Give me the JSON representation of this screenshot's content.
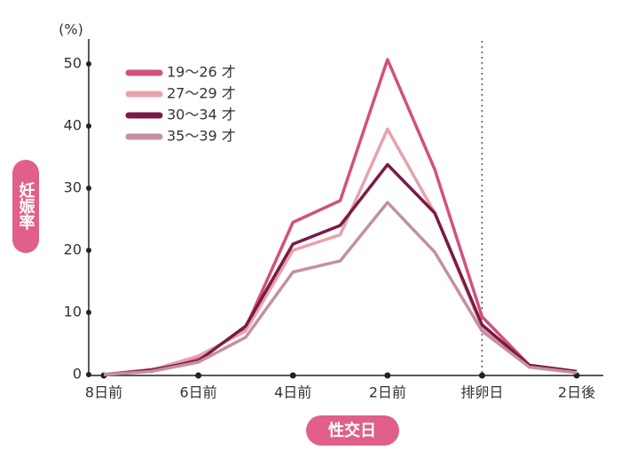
{
  "chart_data": {
    "type": "line",
    "y_unit": "(%)",
    "y_label": "妊娠率",
    "x_label": "性交日",
    "categories": [
      "8日前",
      null,
      "6日前",
      null,
      "4日前",
      null,
      "2日前",
      null,
      "排卵日",
      null,
      "2日後"
    ],
    "series": [
      {
        "name": "19～26 才",
        "color": "#d2517a",
        "values": [
          0,
          0.8,
          2.5,
          7.5,
          24.5,
          28,
          50.7,
          33,
          9.3,
          1.5,
          0.5
        ]
      },
      {
        "name": "27～29 才",
        "color": "#e8a2ac",
        "values": [
          0,
          0.7,
          3,
          7,
          20,
          22.5,
          39.5,
          26,
          7.5,
          1.5,
          0.4
        ]
      },
      {
        "name": "30～34 才",
        "color": "#7a1a48",
        "values": [
          0,
          0.7,
          2.2,
          7.8,
          21,
          24,
          33.8,
          26,
          8,
          1.5,
          0.5
        ]
      },
      {
        "name": "35～39 才",
        "color": "#c4909c",
        "values": [
          0,
          0.5,
          2,
          6,
          16.5,
          18.3,
          27.7,
          19.7,
          7,
          1.2,
          0.3
        ]
      }
    ],
    "ylim": [
      0,
      52
    ],
    "yticks": [
      0,
      10,
      20,
      30,
      40,
      50
    ],
    "reference_line_x": 8,
    "legend": "top-left"
  }
}
